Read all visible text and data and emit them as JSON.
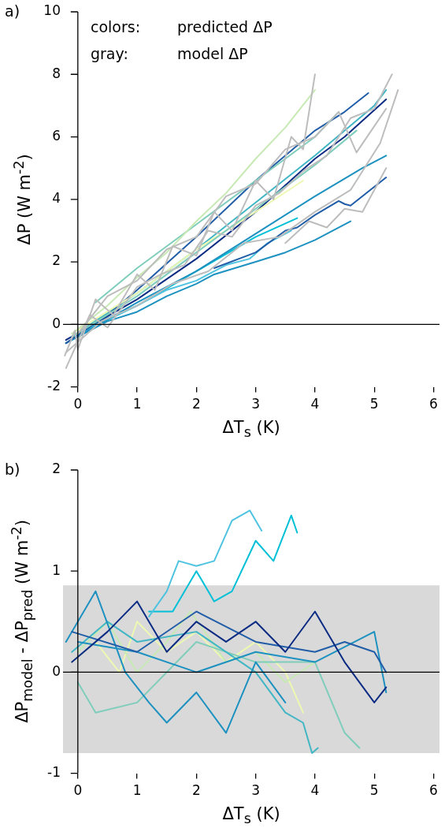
{
  "chart_data": [
    {
      "type": "line",
      "xlabel": "ΔT$_{s}$ (K)",
      "ylabel": "ΔP (W m$^{-2}$)",
      "annotations": [
        "a)",
        "colors: predicted ΔP",
        "gray: model ΔP"
      ],
      "xlim": [
        -0.25,
        6.1
      ],
      "ylim": [
        -2,
        10
      ],
      "xticks": [
        0,
        1,
        2,
        3,
        4,
        5,
        6
      ],
      "yticks": [
        -2,
        0,
        2,
        4,
        6,
        8,
        10
      ],
      "legend": false,
      "ref_lines": [
        {
          "axis": "y",
          "value": 0,
          "color": "#000000"
        }
      ],
      "series": [
        {
          "color": "#bdbdbd",
          "x": [
            -0.22,
            -0.05,
            0,
            0.3,
            0.6,
            1,
            1.3,
            1.6,
            2,
            2.3,
            2.6,
            3,
            3.3,
            3.6,
            3.8,
            4.0
          ],
          "values": [
            -1,
            -0.2,
            -0.8,
            0.8,
            0.3,
            1.6,
            1.1,
            2.5,
            2.2,
            3.6,
            3.0,
            4.6,
            4.0,
            6.0,
            5.6,
            8.0
          ]
        },
        {
          "color": "#bdbdbd",
          "x": [
            -0.2,
            0.2,
            0.5,
            1,
            1.4,
            1.8,
            2.2,
            2.6,
            3,
            3.4,
            3.8,
            4.2,
            4.6,
            5,
            5.3
          ],
          "values": [
            -1.4,
            0.3,
            -0.1,
            1.2,
            1.6,
            1.9,
            3.0,
            2.8,
            3.8,
            4.2,
            4.9,
            5.4,
            6.6,
            6.9,
            8.0
          ]
        },
        {
          "color": "#bdbdbd",
          "x": [
            -0.2,
            0.4,
            1,
            1.6,
            2.2,
            2.8,
            3.4,
            4,
            4.6,
            5.1,
            5.4
          ],
          "values": [
            -0.9,
            0.1,
            0.6,
            1.3,
            1.7,
            2.6,
            2.8,
            3.6,
            4.3,
            5.8,
            7.5
          ]
        },
        {
          "color": "#bdbdbd",
          "x": [
            0,
            0.5,
            1,
            1.5,
            2,
            2.5,
            3,
            3.5,
            4,
            4.4,
            4.7,
            5.2
          ],
          "values": [
            -0.3,
            0.9,
            1.4,
            2.4,
            2.8,
            4.1,
            4.5,
            5.6,
            6.0,
            6.8,
            5.5,
            6.9
          ]
        },
        {
          "color": "#bdbdbd",
          "x": [
            3.5,
            3.9,
            4.2,
            4.5,
            4.8,
            5.2
          ],
          "values": [
            2.6,
            3.3,
            3.1,
            3.7,
            3.6,
            5.0
          ]
        },
        {
          "color": "#c7e9b4",
          "x": [
            -0.1,
            0.5,
            1,
            1.5,
            2,
            2.5,
            3,
            3.5,
            4
          ],
          "values": [
            -0.3,
            0.6,
            1.5,
            2.3,
            3.3,
            4.2,
            5.3,
            6.3,
            7.5
          ]
        },
        {
          "color": "#7fcdbb",
          "x": [
            0.3,
            1,
            2,
            3,
            4,
            4.4
          ],
          "values": [
            0.7,
            1.8,
            3.2,
            4.6,
            6.0,
            6.8
          ]
        },
        {
          "color": "#7fcdbb",
          "x": [
            -0.1,
            1,
            2,
            3,
            4,
            4.7
          ],
          "values": [
            -0.4,
            0.9,
            2.3,
            3.7,
            5.1,
            6.2
          ]
        },
        {
          "color": "#edf8b1",
          "x": [
            -0.1,
            1,
            2,
            3,
            3.8
          ],
          "values": [
            -0.3,
            1.0,
            2.4,
            3.6,
            4.6
          ]
        },
        {
          "color": "#225ea8",
          "x": [
            -0.2,
            0.5,
            1,
            2,
            3,
            4,
            4.5,
            4.9
          ],
          "values": [
            -0.6,
            0.3,
            1.1,
            2.8,
            4.6,
            6.2,
            6.8,
            7.4
          ]
        },
        {
          "color": "#0c2c84",
          "x": [
            -0.2,
            1,
            2,
            3,
            4,
            4.5,
            5.2
          ],
          "values": [
            -0.5,
            0.8,
            2.1,
            3.6,
            5.3,
            6.0,
            7.2
          ]
        },
        {
          "color": "#41b6c4",
          "x": [
            -0.1,
            1,
            2,
            3,
            4,
            5,
            5.2
          ],
          "values": [
            -0.4,
            1.0,
            2.4,
            3.9,
            5.4,
            7.0,
            7.5
          ]
        },
        {
          "color": "#1d91c0",
          "x": [
            -0.2,
            1,
            2,
            3,
            4,
            4.8,
            5.1,
            5.2
          ],
          "values": [
            -0.6,
            0.7,
            1.7,
            2.9,
            4.1,
            5.0,
            5.3,
            5.4
          ]
        },
        {
          "color": "#225ea8",
          "x": [
            2.3,
            3,
            3.5,
            3.7,
            4,
            4.4,
            4.5,
            4.6,
            5.2
          ],
          "values": [
            1.8,
            2.3,
            3.0,
            3.1,
            3.5,
            3.95,
            3.85,
            3.8,
            4.7
          ]
        },
        {
          "color": "#1d91c0",
          "x": [
            -0.2,
            0.5,
            1,
            1.5,
            2,
            2.3,
            3,
            3.5,
            4,
            4.6
          ],
          "values": [
            -0.6,
            0.1,
            0.4,
            0.9,
            1.3,
            1.6,
            2.0,
            2.3,
            2.7,
            3.3
          ]
        },
        {
          "color": "#4fc3e0",
          "x": [
            -0.1,
            0.5,
            1,
            1.5,
            2,
            2.5,
            2.9,
            3.2,
            3.6
          ],
          "values": [
            -0.4,
            0.2,
            0.6,
            1.1,
            1.4,
            1.9,
            2.1,
            2.6,
            3.0
          ]
        },
        {
          "color": "#00c0d8",
          "x": [
            -0.1,
            1,
            2,
            3,
            3.7
          ],
          "values": [
            -0.4,
            0.6,
            1.7,
            2.8,
            3.4
          ]
        }
      ]
    },
    {
      "type": "line",
      "xlabel": "ΔT$_{s}$ (K)",
      "ylabel": "ΔP$_{model}$ - ΔP$_{pred}$ (W m$^{-2}$)",
      "annotations": [
        "b)"
      ],
      "xlim": [
        -0.25,
        6.1
      ],
      "ylim": [
        -1,
        2
      ],
      "xticks": [
        0,
        1,
        2,
        3,
        4,
        5,
        6
      ],
      "yticks": [
        -1,
        0,
        1,
        2
      ],
      "legend": false,
      "bands": [
        {
          "axis": "y",
          "from": -0.8,
          "to": 0.86,
          "color": "#d9d9d9"
        }
      ],
      "ref_lines": [
        {
          "axis": "y",
          "value": 0,
          "color": "#000000"
        }
      ],
      "series": [
        {
          "color": "#0c2c84",
          "x": [
            -0.1,
            0.5,
            1,
            1.5,
            2,
            2.5,
            3,
            3.5,
            4,
            4.5,
            5,
            5.2
          ],
          "values": [
            0.1,
            0.4,
            0.7,
            0.2,
            0.5,
            0.3,
            0.5,
            0.2,
            0.6,
            0.1,
            -0.3,
            -0.15
          ]
        },
        {
          "color": "#225ea8",
          "x": [
            -0.1,
            1,
            2,
            3,
            4,
            4.5,
            5,
            5.2
          ],
          "values": [
            0.4,
            0.2,
            0.6,
            0.3,
            0.2,
            0.3,
            0.2,
            0.0
          ]
        },
        {
          "color": "#1d91c0",
          "x": [
            -0.2,
            0.3,
            0.8,
            1.2,
            1.5,
            2,
            2.5,
            3,
            3.5
          ],
          "values": [
            0.3,
            0.8,
            0.0,
            -0.3,
            -0.5,
            -0.2,
            -0.6,
            0.1,
            -0.3
          ]
        },
        {
          "color": "#1d91c0",
          "x": [
            0,
            1,
            2,
            3,
            4,
            5,
            5.2
          ],
          "values": [
            0.3,
            0.2,
            0.0,
            0.2,
            0.1,
            0.4,
            -0.2
          ]
        },
        {
          "color": "#41b6c4",
          "x": [
            -0.1,
            0.5,
            1,
            2,
            3,
            3.5,
            3.8,
            3.95,
            4.05
          ],
          "values": [
            0.2,
            0.5,
            0.3,
            0.4,
            0.0,
            -0.4,
            -0.5,
            -0.8,
            -0.75
          ]
        },
        {
          "color": "#7fcdbb",
          "x": [
            0,
            0.3,
            1,
            2,
            3,
            4,
            4.5,
            4.75
          ],
          "values": [
            -0.1,
            -0.4,
            -0.3,
            0.3,
            0.1,
            0.1,
            -0.6,
            -0.75
          ]
        },
        {
          "color": "#c7e9b4",
          "x": [
            0,
            0.5,
            1,
            1.5,
            1.9,
            2.5,
            3,
            3.5,
            4
          ],
          "values": [
            0.2,
            0.5,
            0.0,
            0.3,
            0.6,
            0.1,
            0.2,
            -0.1,
            0.1
          ]
        },
        {
          "color": "#edf8b1",
          "x": [
            -0.1,
            0.3,
            0.7,
            1,
            1.5,
            2,
            2.5,
            3,
            3.5,
            3.8
          ],
          "values": [
            0.1,
            0.3,
            0.0,
            0.5,
            0.2,
            0.4,
            0.1,
            0.3,
            0.0,
            -0.4
          ]
        },
        {
          "color": "#4fc3e0",
          "x": [
            1.2,
            1.5,
            1.7,
            2,
            2.3,
            2.6,
            2.9,
            3.1
          ],
          "values": [
            0.55,
            0.8,
            1.1,
            1.05,
            1.1,
            1.5,
            1.6,
            1.4
          ]
        },
        {
          "color": "#00c0d8",
          "x": [
            1.2,
            1.6,
            2,
            2.3,
            2.6,
            3,
            3.3,
            3.6,
            3.7
          ],
          "values": [
            0.6,
            0.6,
            1.0,
            0.7,
            0.8,
            1.3,
            1.1,
            1.55,
            1.38
          ]
        }
      ]
    }
  ]
}
